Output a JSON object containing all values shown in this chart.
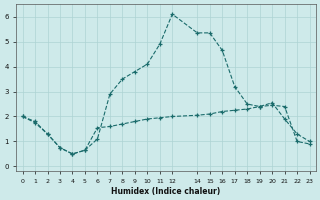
{
  "xlabel": "Humidex (Indice chaleur)",
  "bg_color": "#ceeaea",
  "line_color": "#1a6b6b",
  "grid_color": "#aed4d4",
  "xlim": [
    -0.5,
    23.5
  ],
  "ylim": [
    -0.2,
    6.5
  ],
  "xticks": [
    0,
    1,
    2,
    3,
    4,
    5,
    6,
    7,
    8,
    9,
    10,
    11,
    12,
    14,
    15,
    16,
    17,
    18,
    19,
    20,
    21,
    22,
    23
  ],
  "yticks": [
    0,
    1,
    2,
    3,
    4,
    5,
    6
  ],
  "series1_x": [
    0,
    1,
    2,
    3,
    4,
    5,
    6,
    7,
    8,
    9,
    10,
    11,
    12,
    14,
    15,
    16,
    17,
    18,
    19,
    20,
    21,
    22,
    23
  ],
  "series1_y": [
    2.0,
    1.8,
    1.3,
    0.75,
    0.5,
    0.65,
    1.1,
    2.9,
    3.5,
    3.8,
    4.1,
    4.9,
    6.1,
    5.35,
    5.35,
    4.65,
    3.2,
    2.5,
    2.4,
    2.55,
    1.9,
    1.3,
    1.0
  ],
  "series2_x": [
    0,
    1,
    2,
    3,
    4,
    5,
    6,
    7,
    8,
    9,
    10,
    11,
    12,
    14,
    15,
    16,
    17,
    18,
    19,
    20,
    21,
    22,
    23
  ],
  "series2_y": [
    2.0,
    1.75,
    1.3,
    0.75,
    0.5,
    0.65,
    1.55,
    1.6,
    1.7,
    1.8,
    1.9,
    1.95,
    2.0,
    2.05,
    2.1,
    2.2,
    2.25,
    2.3,
    2.4,
    2.45,
    2.4,
    1.0,
    0.9
  ]
}
